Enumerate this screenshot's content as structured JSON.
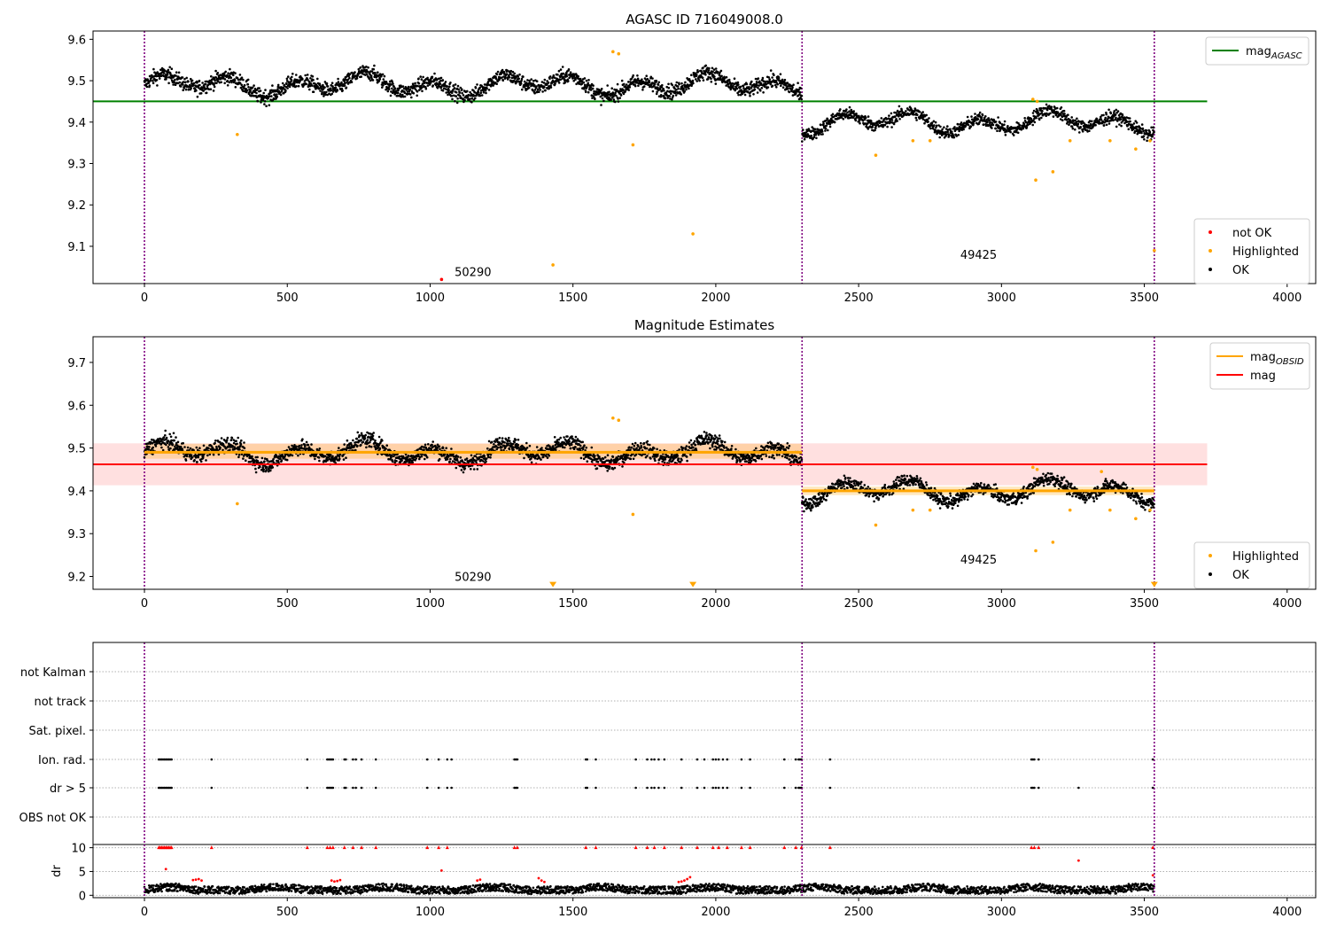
{
  "chart_data": [
    {
      "type": "scatter",
      "title": "AGASC ID 716049008.0",
      "xlim": [
        -180,
        4100
      ],
      "ylim": [
        9.01,
        9.62
      ],
      "xticks": [
        0,
        500,
        1000,
        1500,
        2000,
        2500,
        3000,
        3500,
        4000
      ],
      "yticks": [
        9.1,
        9.2,
        9.3,
        9.4,
        9.5,
        9.6
      ],
      "ytick_labels": [
        "9.1",
        "9.2",
        "9.3",
        "9.4",
        "9.5",
        "9.6"
      ],
      "observation_boundaries": [
        0,
        2302,
        3535
      ],
      "observation_labels": [
        {
          "text": "50290",
          "x": 1150,
          "y": 9.028
        },
        {
          "text": "49425",
          "x": 2920,
          "y": 9.07
        }
      ],
      "hline": {
        "name": "mag_AGASC",
        "value": 9.45,
        "x_range": [
          -180,
          3720
        ],
        "color": "#008000"
      },
      "ok_segments": [
        {
          "x_range": [
            0,
            2302
          ],
          "center": 9.49,
          "spread": 0.035
        },
        {
          "x_range": [
            2302,
            3535
          ],
          "center": 9.4,
          "spread": 0.03
        }
      ],
      "highlighted": [
        [
          325,
          9.37
        ],
        [
          1430,
          9.055
        ],
        [
          1710,
          9.345
        ],
        [
          1920,
          9.13
        ],
        [
          2560,
          9.32
        ],
        [
          2690,
          9.355
        ],
        [
          2750,
          9.355
        ],
        [
          3120,
          9.26
        ],
        [
          3180,
          9.28
        ],
        [
          3240,
          9.355
        ],
        [
          3380,
          9.355
        ],
        [
          3470,
          9.335
        ],
        [
          3520,
          9.355
        ],
        [
          3535,
          9.09
        ],
        [
          1640,
          9.57
        ],
        [
          1660,
          9.565
        ],
        [
          3110,
          9.455
        ],
        [
          3125,
          9.45
        ]
      ],
      "not_ok": [
        [
          1040,
          9.02
        ]
      ],
      "legend_top": [
        {
          "label": "mag",
          "sub": "AGASC",
          "color": "#008000"
        }
      ],
      "legend_bottom": [
        {
          "label": "not OK",
          "color": "#ff0000"
        },
        {
          "label": "Highlighted",
          "color": "#ffa500"
        },
        {
          "label": "OK",
          "color": "#000000"
        }
      ]
    },
    {
      "type": "scatter",
      "title": "Magnitude Estimates",
      "xlim": [
        -180,
        4100
      ],
      "ylim": [
        9.17,
        9.76
      ],
      "xticks": [
        0,
        500,
        1000,
        1500,
        2000,
        2500,
        3000,
        3500,
        4000
      ],
      "yticks": [
        9.2,
        9.3,
        9.4,
        9.5,
        9.6,
        9.7
      ],
      "ytick_labels": [
        "9.2",
        "9.3",
        "9.4",
        "9.5",
        "9.6",
        "9.7"
      ],
      "observation_boundaries": [
        0,
        2302,
        3535
      ],
      "observation_labels": [
        {
          "text": "50290",
          "x": 1150,
          "y": 9.19
        },
        {
          "text": "49425",
          "x": 2920,
          "y": 9.23
        }
      ],
      "mag": {
        "value": 9.462,
        "band": [
          9.413,
          9.511
        ],
        "x_range": [
          -180,
          3720
        ],
        "color": "#ff0000"
      },
      "mag_obsid": [
        {
          "x_range": [
            0,
            2302
          ],
          "value": 9.49,
          "band": [
            9.475,
            9.51
          ]
        },
        {
          "x_range": [
            2302,
            3535
          ],
          "value": 9.4,
          "band": [
            9.39,
            9.41
          ]
        }
      ],
      "ok_segments": [
        {
          "x_range": [
            0,
            2302
          ],
          "center": 9.49,
          "spread": 0.035
        },
        {
          "x_range": [
            2302,
            3535
          ],
          "center": 9.4,
          "spread": 0.03
        }
      ],
      "highlighted": [
        [
          325,
          9.37
        ],
        [
          1710,
          9.345
        ],
        [
          2560,
          9.32
        ],
        [
          2690,
          9.355
        ],
        [
          2750,
          9.355
        ],
        [
          3120,
          9.26
        ],
        [
          3180,
          9.28
        ],
        [
          3240,
          9.355
        ],
        [
          3350,
          9.445
        ],
        [
          3380,
          9.355
        ],
        [
          3470,
          9.335
        ],
        [
          3520,
          9.355
        ],
        [
          1640,
          9.57
        ],
        [
          1660,
          9.565
        ],
        [
          3110,
          9.455
        ],
        [
          3125,
          9.45
        ]
      ],
      "clipped": [
        [
          1430,
          9.175
        ],
        [
          1920,
          9.175
        ],
        [
          3535,
          9.175
        ]
      ],
      "legend_top": [
        {
          "label": "mag",
          "sub": "OBSID",
          "color": "#ffa500"
        },
        {
          "label": "mag",
          "sub": "",
          "color": "#ff0000"
        }
      ],
      "legend_bottom": [
        {
          "label": "Highlighted",
          "color": "#ffa500"
        },
        {
          "label": "OK",
          "color": "#000000"
        }
      ]
    },
    {
      "type": "scatter",
      "title": "",
      "xlim": [
        -180,
        4100
      ],
      "xticks": [
        0,
        500,
        1000,
        1500,
        2000,
        2500,
        3000,
        3500,
        4000
      ],
      "observation_boundaries": [
        0,
        2302,
        3535
      ],
      "flag_rows": [
        "not Kalman",
        "not track",
        "Sat. pixel.",
        "Ion. rad.",
        "dr > 5",
        "OBS not OK"
      ],
      "flag_events": {
        "Ion. rad.": [
          50,
          55,
          60,
          65,
          70,
          75,
          80,
          85,
          90,
          95,
          235,
          570,
          640,
          645,
          650,
          655,
          660,
          700,
          705,
          730,
          740,
          760,
          810,
          990,
          1030,
          1060,
          1075,
          1295,
          1300,
          1305,
          1545,
          1550,
          1580,
          1720,
          1760,
          1775,
          1785,
          1800,
          1820,
          1880,
          1935,
          1960,
          1990,
          2000,
          2010,
          2025,
          2040,
          2090,
          2120,
          2240,
          2280,
          2290,
          2295,
          2300,
          2400,
          3105,
          3110,
          3115,
          3130,
          3530
        ],
        "dr > 5": [
          50,
          55,
          60,
          65,
          70,
          75,
          80,
          85,
          90,
          95,
          235,
          570,
          640,
          645,
          650,
          655,
          660,
          700,
          705,
          730,
          740,
          760,
          810,
          990,
          1030,
          1060,
          1075,
          1295,
          1300,
          1305,
          1545,
          1550,
          1580,
          1720,
          1760,
          1775,
          1785,
          1800,
          1820,
          1880,
          1935,
          1960,
          1990,
          2000,
          2010,
          2025,
          2040,
          2090,
          2120,
          2240,
          2280,
          2290,
          2295,
          2300,
          2400,
          3105,
          3110,
          3115,
          3130,
          3270,
          3530
        ]
      },
      "dr": {
        "ylabel": "dr",
        "ylim": [
          -0.5,
          10.3
        ],
        "yticks": [
          0,
          5,
          10
        ],
        "ytick_labels": [
          "0",
          "5",
          "10"
        ],
        "ok_band": [
          0.3,
          1.9
        ],
        "red_points": [
          [
            50,
            10
          ],
          [
            55,
            10
          ],
          [
            60,
            10
          ],
          [
            65,
            10
          ],
          [
            70,
            10
          ],
          [
            75,
            10
          ],
          [
            80,
            10
          ],
          [
            85,
            10
          ],
          [
            90,
            10
          ],
          [
            95,
            10
          ],
          [
            235,
            10
          ],
          [
            570,
            10
          ],
          [
            640,
            10
          ],
          [
            650,
            10
          ],
          [
            660,
            10
          ],
          [
            700,
            10
          ],
          [
            730,
            10
          ],
          [
            760,
            10
          ],
          [
            810,
            10
          ],
          [
            990,
            10
          ],
          [
            1030,
            10
          ],
          [
            1060,
            10
          ],
          [
            1295,
            10
          ],
          [
            1305,
            10
          ],
          [
            1545,
            10
          ],
          [
            1580,
            10
          ],
          [
            1720,
            10
          ],
          [
            1760,
            10
          ],
          [
            1785,
            10
          ],
          [
            1820,
            10
          ],
          [
            1880,
            10
          ],
          [
            1935,
            10
          ],
          [
            1990,
            10
          ],
          [
            2010,
            10
          ],
          [
            2040,
            10
          ],
          [
            2090,
            10
          ],
          [
            2120,
            10
          ],
          [
            2240,
            10
          ],
          [
            2280,
            10
          ],
          [
            2300,
            10
          ],
          [
            2400,
            10
          ],
          [
            3105,
            10
          ],
          [
            3115,
            10
          ],
          [
            3130,
            10
          ],
          [
            3530,
            10
          ],
          [
            75,
            5.5
          ],
          [
            1040,
            5.2
          ],
          [
            3270,
            7.3
          ],
          [
            3530,
            4.2
          ],
          [
            170,
            3.2
          ],
          [
            180,
            3.3
          ],
          [
            190,
            3.4
          ],
          [
            200,
            3.1
          ],
          [
            655,
            3.1
          ],
          [
            665,
            2.9
          ],
          [
            675,
            3.0
          ],
          [
            685,
            3.2
          ],
          [
            1165,
            3.1
          ],
          [
            1175,
            3.3
          ],
          [
            1380,
            3.6
          ],
          [
            1390,
            3.1
          ],
          [
            1400,
            2.8
          ],
          [
            1870,
            2.8
          ],
          [
            1880,
            2.9
          ],
          [
            1890,
            3.1
          ],
          [
            1900,
            3.4
          ],
          [
            1910,
            3.8
          ]
        ]
      }
    }
  ]
}
